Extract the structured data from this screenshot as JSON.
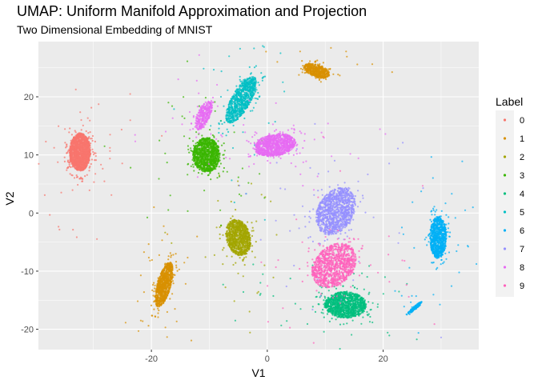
{
  "chart_data": {
    "type": "scatter",
    "title": "UMAP: Uniform Manifold Approximation and Projection",
    "subtitle": "Two Dimensional Embedding of MNIST",
    "xlabel": "V1",
    "ylabel": "V2",
    "xlim": [
      -39.5,
      36.5
    ],
    "ylim": [
      -23.5,
      29.5
    ],
    "x_ticks": [
      -20,
      0,
      20
    ],
    "y_ticks": [
      -20,
      -10,
      0,
      10,
      20
    ],
    "x_tick_labels": [
      "-20",
      "0",
      "20"
    ],
    "y_tick_labels": [
      "-20",
      "-10",
      "0",
      "10",
      "20"
    ],
    "grid": true,
    "legend": {
      "title": "Label",
      "position": "right",
      "entries": [
        "0",
        "1",
        "2",
        "3",
        "4",
        "5",
        "6",
        "7",
        "8",
        "9"
      ]
    },
    "colors": [
      "#F8766D",
      "#D89000",
      "#A3A500",
      "#39B600",
      "#00BF7D",
      "#00BFC4",
      "#00B0F6",
      "#9590FF",
      "#E76BF3",
      "#FF62BC"
    ],
    "panel_background": "#EBEBEB",
    "clusters": [
      {
        "label": "0",
        "center": [
          -32.3,
          10.5
        ],
        "spread": [
          2.0,
          3.6
        ],
        "angle": 0,
        "n": 1600
      },
      {
        "label": "1",
        "center": [
          -17.8,
          -12.3
        ],
        "spread": [
          1.3,
          4.4
        ],
        "angle": -15,
        "n": 900
      },
      {
        "label": "1",
        "center": [
          8.5,
          24.5
        ],
        "spread": [
          2.6,
          1.2
        ],
        "angle": -20,
        "n": 500
      },
      {
        "label": "2",
        "center": [
          -5.0,
          -4.2
        ],
        "spread": [
          2.3,
          3.5
        ],
        "angle": 15,
        "n": 1000
      },
      {
        "label": "3",
        "center": [
          -10.5,
          10.0
        ],
        "spread": [
          2.6,
          3.3
        ],
        "angle": 0,
        "n": 1100
      },
      {
        "label": "4",
        "center": [
          13.5,
          -15.8
        ],
        "spread": [
          4.0,
          2.5
        ],
        "angle": 0,
        "n": 1200
      },
      {
        "label": "5",
        "center": [
          -4.5,
          19.5
        ],
        "spread": [
          1.8,
          5.0
        ],
        "angle": -30,
        "n": 900
      },
      {
        "label": "6",
        "center": [
          29.5,
          -4.2
        ],
        "spread": [
          1.6,
          4.0
        ],
        "angle": 0,
        "n": 900
      },
      {
        "label": "6",
        "center": [
          25.5,
          -16.3
        ],
        "spread": [
          0.3,
          1.8
        ],
        "angle": -50,
        "n": 120
      },
      {
        "label": "7",
        "center": [
          11.8,
          0.3
        ],
        "spread": [
          3.4,
          4.8
        ],
        "angle": -30,
        "n": 1200
      },
      {
        "label": "8",
        "center": [
          1.3,
          11.7
        ],
        "spread": [
          4.0,
          2.1
        ],
        "angle": 10,
        "n": 1100
      },
      {
        "label": "8",
        "center": [
          -11.0,
          16.8
        ],
        "spread": [
          1.2,
          3.0
        ],
        "angle": -25,
        "n": 350
      },
      {
        "label": "9",
        "center": [
          11.5,
          -9.0
        ],
        "spread": [
          3.6,
          4.8
        ],
        "angle": -45,
        "n": 1100
      }
    ]
  }
}
